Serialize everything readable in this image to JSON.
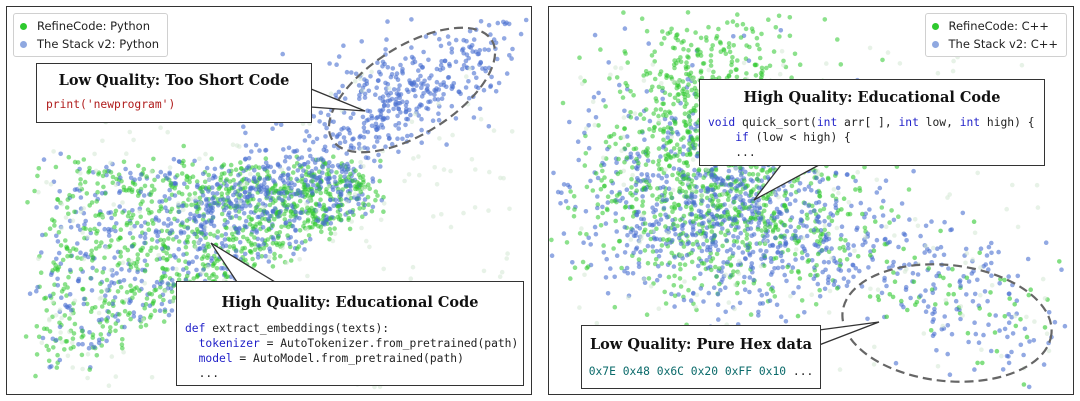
{
  "chart_data": [
    {
      "type": "scatter",
      "title": "",
      "xlabel": "",
      "ylabel": "",
      "grid": false,
      "legend_placement": "top-left",
      "series": [
        {
          "name": "RefineCode: Python",
          "color": "#2ec92e"
        },
        {
          "name": "The Stack v2: Python",
          "color": "#4a6fd0"
        }
      ],
      "annotations": [
        {
          "title": "Low Quality: Too Short Code",
          "code_fn": "print",
          "code_arg": "'newprogram'"
        },
        {
          "title": "High Quality: Educational Code",
          "line1_kw": "def",
          "line1_rest": " extract_embeddings(texts):",
          "line2_kw": "tokenizer",
          "line2_rest": " = AutoTokenizer.from_pretrained(path)",
          "line3_kw": "model",
          "line3_rest": " = AutoModel.from_pretrained(path)",
          "line4": "..."
        }
      ]
    },
    {
      "type": "scatter",
      "title": "",
      "xlabel": "",
      "ylabel": "",
      "grid": false,
      "legend_placement": "top-right",
      "series": [
        {
          "name": "RefineCode: C++",
          "color": "#2ec92e"
        },
        {
          "name": "The Stack v2: C++",
          "color": "#4a6fd0"
        }
      ],
      "annotations": [
        {
          "title": "High Quality: Educational Code",
          "line1_kw": "void",
          "line1_mid": " quick_sort(",
          "line1_kw2": "int",
          "line1_mid2": " arr[ ], ",
          "line1_kw3": "int",
          "line1_mid3": " low, ",
          "line1_kw4": "int",
          "line1_end": " high) {",
          "line2_kw": "if",
          "line2_rest": " (low < high) {",
          "line3": "..."
        },
        {
          "title": "Low Quality: Pure Hex data",
          "hex": [
            "0x7E",
            "0x48",
            "0x6C",
            "0x20",
            "0xFF",
            "0x10",
            "..."
          ]
        }
      ]
    }
  ]
}
